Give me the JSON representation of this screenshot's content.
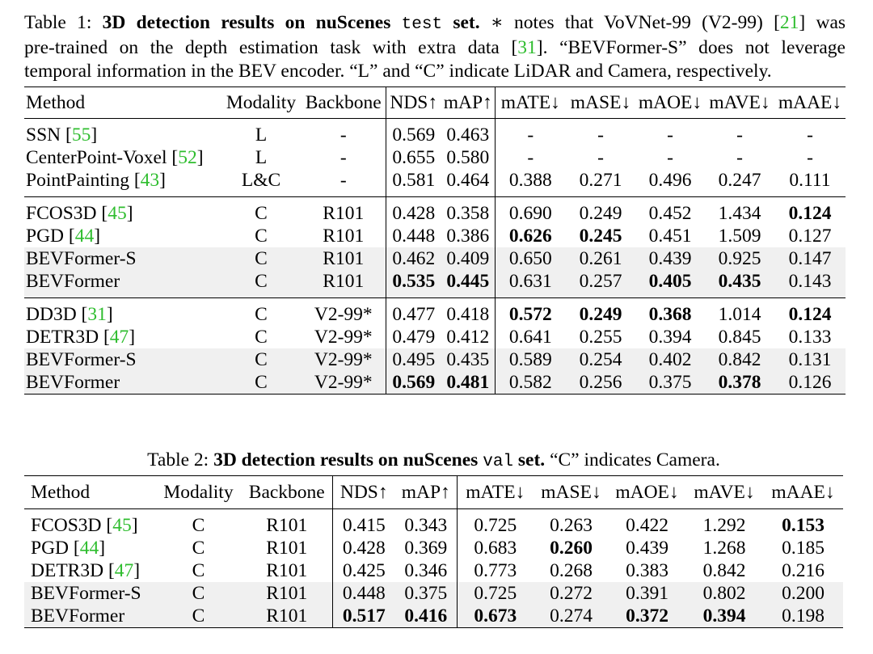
{
  "table1": {
    "caption": {
      "label": "Table 1:",
      "title": "3D detection results on nuScenes",
      "set_name": "test",
      "set_word": "set.",
      "text_a": "∗ notes that VoVNet-99 (V2-99) [",
      "ref_a": "21",
      "text_b": "] was",
      "text_c": "pre-trained on the depth estimation task with extra data [",
      "ref_b": "31",
      "text_d": "]. “BEVFormer-S” does not leverage",
      "text_e": "temporal information in the BEV encoder. “L” and “C” indicate LiDAR and Camera, respectively."
    },
    "headers": [
      "Method",
      "Modality",
      "Backbone",
      "NDS↑",
      "mAP↑",
      "mATE↓",
      "mASE↓",
      "mAOE↓",
      "mAVE↓",
      "mAAE↓"
    ],
    "rows": [
      {
        "name": "SSN",
        "ref": "55",
        "modality": "L",
        "backbone": "-",
        "nds": "0.569",
        "map": "0.463",
        "mate": "-",
        "mase": "-",
        "maoe": "-",
        "mave": "-",
        "maae": "-"
      },
      {
        "name": "CenterPoint-Voxel",
        "ref": "52",
        "modality": "L",
        "backbone": "-",
        "nds": "0.655",
        "map": "0.580",
        "mate": "-",
        "mase": "-",
        "maoe": "-",
        "mave": "-",
        "maae": "-"
      },
      {
        "name": "PointPainting",
        "ref": "43",
        "modality": "L&C",
        "backbone": "-",
        "nds": "0.581",
        "map": "0.464",
        "mate": "0.388",
        "mase": "0.271",
        "maoe": "0.496",
        "mave": "0.247",
        "maae": "0.111"
      },
      {
        "name": "FCOS3D",
        "ref": "45",
        "modality": "C",
        "backbone": "R101",
        "nds": "0.428",
        "map": "0.358",
        "mate": "0.690",
        "mase": "0.249",
        "maoe": "0.452",
        "mave": "1.434",
        "maae": "0.124"
      },
      {
        "name": "PGD",
        "ref": "44",
        "modality": "C",
        "backbone": "R101",
        "nds": "0.448",
        "map": "0.386",
        "mate": "0.626",
        "mase": "0.245",
        "maoe": "0.451",
        "mave": "1.509",
        "maae": "0.127"
      },
      {
        "name": "BEVFormer-S",
        "ref": "",
        "modality": "C",
        "backbone": "R101",
        "nds": "0.462",
        "map": "0.409",
        "mate": "0.650",
        "mase": "0.261",
        "maoe": "0.439",
        "mave": "0.925",
        "maae": "0.147"
      },
      {
        "name": "BEVFormer",
        "ref": "",
        "modality": "C",
        "backbone": "R101",
        "nds": "0.535",
        "map": "0.445",
        "mate": "0.631",
        "mase": "0.257",
        "maoe": "0.405",
        "mave": "0.435",
        "maae": "0.143"
      },
      {
        "name": "DD3D",
        "ref": "31",
        "modality": "C",
        "backbone": "V2-99*",
        "nds": "0.477",
        "map": "0.418",
        "mate": "0.572",
        "mase": "0.249",
        "maoe": "0.368",
        "mave": "1.014",
        "maae": "0.124"
      },
      {
        "name": "DETR3D",
        "ref": "47",
        "modality": "C",
        "backbone": "V2-99*",
        "nds": "0.479",
        "map": "0.412",
        "mate": "0.641",
        "mase": "0.255",
        "maoe": "0.394",
        "mave": "0.845",
        "maae": "0.133"
      },
      {
        "name": "BEVFormer-S",
        "ref": "",
        "modality": "C",
        "backbone": "V2-99*",
        "nds": "0.495",
        "map": "0.435",
        "mate": "0.589",
        "mase": "0.254",
        "maoe": "0.402",
        "mave": "0.842",
        "maae": "0.131"
      },
      {
        "name": "BEVFormer",
        "ref": "",
        "modality": "C",
        "backbone": "V2-99*",
        "nds": "0.569",
        "map": "0.481",
        "mate": "0.582",
        "mase": "0.256",
        "maoe": "0.375",
        "mave": "0.378",
        "maae": "0.126"
      }
    ]
  },
  "table2": {
    "caption": {
      "label": "Table 2:",
      "title": "3D detection results on nuScenes",
      "set_name": "val",
      "set_word": "set.",
      "text_a": "“C” indicates Camera."
    },
    "headers": [
      "Method",
      "Modality",
      "Backbone",
      "NDS↑",
      "mAP↑",
      "mATE↓",
      "mASE↓",
      "mAOE↓",
      "mAVE↓",
      "mAAE↓"
    ],
    "rows": [
      {
        "name": "FCOS3D",
        "ref": "45",
        "modality": "C",
        "backbone": "R101",
        "nds": "0.415",
        "map": "0.343",
        "mate": "0.725",
        "mase": "0.263",
        "maoe": "0.422",
        "mave": "1.292",
        "maae": "0.153"
      },
      {
        "name": "PGD",
        "ref": "44",
        "modality": "C",
        "backbone": "R101",
        "nds": "0.428",
        "map": "0.369",
        "mate": "0.683",
        "mase": "0.260",
        "maoe": "0.439",
        "mave": "1.268",
        "maae": "0.185"
      },
      {
        "name": "DETR3D",
        "ref": "47",
        "modality": "C",
        "backbone": "R101",
        "nds": "0.425",
        "map": "0.346",
        "mate": "0.773",
        "mase": "0.268",
        "maoe": "0.383",
        "mave": "0.842",
        "maae": "0.216"
      },
      {
        "name": "BEVFormer-S",
        "ref": "",
        "modality": "C",
        "backbone": "R101",
        "nds": "0.448",
        "map": "0.375",
        "mate": "0.725",
        "mase": "0.272",
        "maoe": "0.391",
        "mave": "0.802",
        "maae": "0.200"
      },
      {
        "name": "BEVFormer",
        "ref": "",
        "modality": "C",
        "backbone": "R101",
        "nds": "0.517",
        "map": "0.416",
        "mate": "0.673",
        "mase": "0.274",
        "maoe": "0.372",
        "mave": "0.394",
        "maae": "0.198"
      }
    ]
  }
}
